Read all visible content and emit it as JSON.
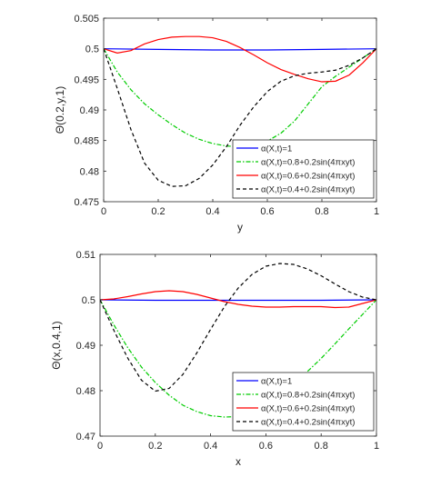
{
  "chart_data": [
    {
      "type": "line",
      "xlabel": "y",
      "ylabel": "Θ(0.2,y,1)",
      "xlim": [
        0,
        1
      ],
      "ylim": [
        0.475,
        0.505
      ],
      "xticks": [
        0,
        0.2,
        0.4,
        0.6,
        0.8,
        1
      ],
      "xtick_labels": [
        "0",
        "0.2",
        "0.4",
        "0.6",
        "0.8",
        "1"
      ],
      "yticks": [
        0.475,
        0.48,
        0.485,
        0.49,
        0.495,
        0.5,
        0.505
      ],
      "ytick_labels": [
        "0.475",
        "0.48",
        "0.485",
        "0.49",
        "0.495",
        "0.5",
        "0.505"
      ],
      "grid": false,
      "legend_position": "bottom-right",
      "series": [
        {
          "name": "α(X,t)=1",
          "color": "#0000ff",
          "style": "solid",
          "x": [
            0,
            0.2,
            0.4,
            0.6,
            0.8,
            1
          ],
          "y": [
            0.5,
            0.4999,
            0.4998,
            0.4998,
            0.4999,
            0.5
          ]
        },
        {
          "name": "α(X,t)=0.8+0.2sin(4πxyt)",
          "color": "#00cc00",
          "style": "dashdot",
          "x": [
            0,
            0.05,
            0.1,
            0.15,
            0.2,
            0.25,
            0.3,
            0.35,
            0.4,
            0.45,
            0.5,
            0.55,
            0.6,
            0.65,
            0.7,
            0.75,
            0.8,
            0.85,
            0.9,
            0.95,
            1
          ],
          "y": [
            0.5,
            0.4962,
            0.4933,
            0.491,
            0.4892,
            0.4876,
            0.4862,
            0.4852,
            0.4845,
            0.4841,
            0.484,
            0.4842,
            0.4849,
            0.4862,
            0.4882,
            0.491,
            0.4938,
            0.4955,
            0.497,
            0.4985,
            0.5
          ]
        },
        {
          "name": "α(X,t)=0.6+0.2sin(4πxyt)",
          "color": "#ff0000",
          "style": "solid",
          "x": [
            0,
            0.05,
            0.1,
            0.15,
            0.2,
            0.25,
            0.3,
            0.35,
            0.4,
            0.45,
            0.5,
            0.55,
            0.6,
            0.65,
            0.7,
            0.75,
            0.8,
            0.85,
            0.9,
            0.95,
            1
          ],
          "y": [
            0.5,
            0.4993,
            0.4997,
            0.5008,
            0.5015,
            0.5019,
            0.502,
            0.502,
            0.5018,
            0.5012,
            0.5002,
            0.499,
            0.4977,
            0.4966,
            0.4958,
            0.4951,
            0.4946,
            0.4947,
            0.4957,
            0.4977,
            0.5
          ]
        },
        {
          "name": "α(X,t)=0.4+0.2sin(4πxyt)",
          "color": "#000000",
          "style": "dashed",
          "x": [
            0,
            0.05,
            0.1,
            0.15,
            0.2,
            0.25,
            0.3,
            0.35,
            0.4,
            0.45,
            0.5,
            0.55,
            0.6,
            0.65,
            0.7,
            0.75,
            0.8,
            0.85,
            0.9,
            0.95,
            1
          ],
          "y": [
            0.5,
            0.4935,
            0.4868,
            0.4813,
            0.4785,
            0.4775,
            0.4776,
            0.4788,
            0.481,
            0.484,
            0.4875,
            0.4905,
            0.493,
            0.4947,
            0.4956,
            0.496,
            0.4962,
            0.4965,
            0.4973,
            0.4985,
            0.5
          ]
        }
      ]
    },
    {
      "type": "line",
      "xlabel": "x",
      "ylabel": "Θ(x,0.4,1)",
      "xlim": [
        0,
        1
      ],
      "ylim": [
        0.47,
        0.51
      ],
      "xticks": [
        0,
        0.2,
        0.4,
        0.6,
        0.8,
        1
      ],
      "xtick_labels": [
        "0",
        "0.2",
        "0.4",
        "0.6",
        "0.8",
        "1"
      ],
      "yticks": [
        0.47,
        0.48,
        0.49,
        0.5,
        0.51
      ],
      "ytick_labels": [
        "0.47",
        "0.48",
        "0.49",
        "0.5",
        "0.51"
      ],
      "grid": false,
      "legend_position": "bottom-right",
      "series": [
        {
          "name": "α(X,t)=1",
          "color": "#0000ff",
          "style": "solid",
          "x": [
            0,
            0.2,
            0.4,
            0.6,
            0.8,
            1
          ],
          "y": [
            0.5,
            0.4999,
            0.4999,
            0.4999,
            0.4999,
            0.5
          ]
        },
        {
          "name": "α(X,t)=0.8+0.2sin(4πxyt)",
          "color": "#00cc00",
          "style": "dashdot",
          "x": [
            0,
            0.05,
            0.1,
            0.15,
            0.2,
            0.25,
            0.3,
            0.35,
            0.4,
            0.45,
            0.5,
            0.55,
            0.6,
            0.65,
            0.7,
            0.75,
            0.8,
            0.85,
            0.9,
            0.95,
            1
          ],
          "y": [
            0.5,
            0.4945,
            0.4895,
            0.4852,
            0.4818,
            0.479,
            0.4768,
            0.4754,
            0.4745,
            0.4742,
            0.4743,
            0.4752,
            0.4768,
            0.479,
            0.4815,
            0.4842,
            0.4871,
            0.4903,
            0.4936,
            0.4968,
            0.5
          ]
        },
        {
          "name": "α(X,t)=0.6+0.2sin(4πxyt)",
          "color": "#ff0000",
          "style": "solid",
          "x": [
            0,
            0.05,
            0.1,
            0.15,
            0.2,
            0.25,
            0.3,
            0.35,
            0.4,
            0.45,
            0.5,
            0.55,
            0.6,
            0.65,
            0.7,
            0.75,
            0.8,
            0.85,
            0.9,
            0.95,
            1
          ],
          "y": [
            0.5,
            0.5002,
            0.5007,
            0.5013,
            0.5018,
            0.502,
            0.5018,
            0.5012,
            0.5004,
            0.4996,
            0.499,
            0.4986,
            0.4984,
            0.4984,
            0.4985,
            0.4985,
            0.4985,
            0.4983,
            0.4984,
            0.4992,
            0.5
          ]
        },
        {
          "name": "α(X,t)=0.4+0.2sin(4πxyt)",
          "color": "#000000",
          "style": "dashed",
          "x": [
            0,
            0.05,
            0.1,
            0.15,
            0.2,
            0.25,
            0.3,
            0.35,
            0.4,
            0.45,
            0.5,
            0.55,
            0.6,
            0.65,
            0.7,
            0.75,
            0.8,
            0.85,
            0.9,
            0.95,
            1
          ],
          "y": [
            0.5,
            0.4933,
            0.4872,
            0.4823,
            0.4799,
            0.4805,
            0.4836,
            0.4883,
            0.4935,
            0.4985,
            0.5026,
            0.5056,
            0.5074,
            0.508,
            0.5078,
            0.5068,
            0.5053,
            0.5035,
            0.5018,
            0.5006,
            0.5
          ]
        }
      ]
    }
  ]
}
